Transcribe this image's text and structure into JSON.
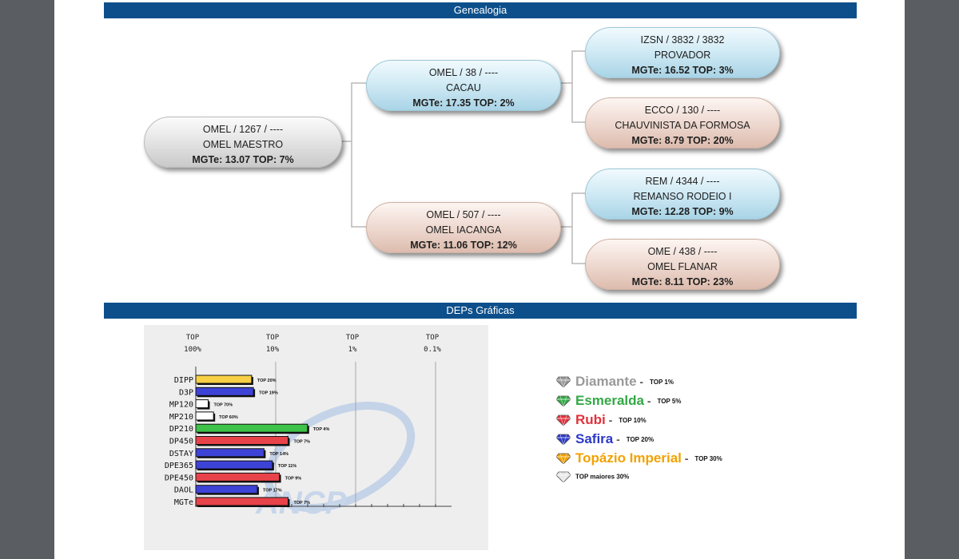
{
  "sections": {
    "genealogy_title": "Genealogia",
    "deps_title": "DEPs Gráficas"
  },
  "pedigree": {
    "animal": {
      "l1": "OMEL / 1267 / ----",
      "l2": "OMEL MAESTRO",
      "l3": "MGTe: 13.07   TOP: 7%"
    },
    "sire": {
      "l1": "OMEL / 38 / ----",
      "l2": "CACAU",
      "l3": "MGTe: 17.35   TOP: 2%"
    },
    "dam": {
      "l1": "OMEL / 507 / ----",
      "l2": "OMEL IACANGA",
      "l3": "MGTe: 11.06   TOP: 12%"
    },
    "ss": {
      "l1": "IZSN / 3832 / 3832",
      "l2": "PROVADOR",
      "l3": "MGTe: 16.52   TOP: 3%"
    },
    "sd": {
      "l1": "ECCO / 130 / ----",
      "l2": "CHAUVINISTA DA FORMOSA",
      "l3": "MGTe: 8.79   TOP: 20%"
    },
    "ds": {
      "l1": "REM / 4344 / ----",
      "l2": "REMANSO RODEIO I",
      "l3": "MGTe: 12.28   TOP: 9%"
    },
    "dd": {
      "l1": "OME / 438 / ----",
      "l2": "OMEL FLANAR",
      "l3": "MGTe: 8.11   TOP: 23%"
    }
  },
  "chart_data": {
    "type": "bar",
    "orientation": "horizontal",
    "scale_headers": [
      [
        "TOP",
        "100%"
      ],
      [
        "TOP",
        "10%"
      ],
      [
        "TOP",
        "1%"
      ],
      [
        "TOP",
        "0.1%"
      ]
    ],
    "categories": [
      "DIPP",
      "D3P",
      "MP120",
      "MP210",
      "DP210",
      "DP450",
      "DSTAY",
      "DPE365",
      "DPE450",
      "DAOL",
      "MGTe"
    ],
    "values": [
      20,
      19,
      70,
      60,
      4,
      7,
      14,
      11,
      9,
      17,
      7
    ],
    "value_labels": [
      "TOP 20%",
      "TOP 19%",
      "TOP 70%",
      "TOP 60%",
      "TOP 4%",
      "TOP 7%",
      "TOP 14%",
      "TOP 11%",
      "TOP 9%",
      "TOP 17%",
      "TOP 7%"
    ],
    "value_unit": "TOP %",
    "axis_scale": "log (TOP 100% to TOP 0.1%)",
    "bar_colors": [
      "#f7d046",
      "#3d43d6",
      "#ffffff",
      "#ffffff",
      "#3ec24a",
      "#e8434a",
      "#3d43d6",
      "#3d43d6",
      "#e8434a",
      "#3d43d6",
      "#e8434a"
    ],
    "watermark": "ANCP"
  },
  "legend": [
    {
      "name": "Diamante",
      "dash": " - ",
      "top": "TOP 1%",
      "color": "#9a9a9a"
    },
    {
      "name": "Esmeralda",
      "dash": " - ",
      "top": "TOP 5%",
      "color": "#33a845"
    },
    {
      "name": "Rubi",
      "dash": " - ",
      "top": "TOP 10%",
      "color": "#e2323c"
    },
    {
      "name": "Safira",
      "dash": " - ",
      "top": "TOP 20%",
      "color": "#2c39c8"
    },
    {
      "name": "Topázio Imperial",
      "dash": " - ",
      "top": "TOP 30%",
      "color": "#f2a100"
    }
  ],
  "legend_footer": "TOP maiores 30%"
}
